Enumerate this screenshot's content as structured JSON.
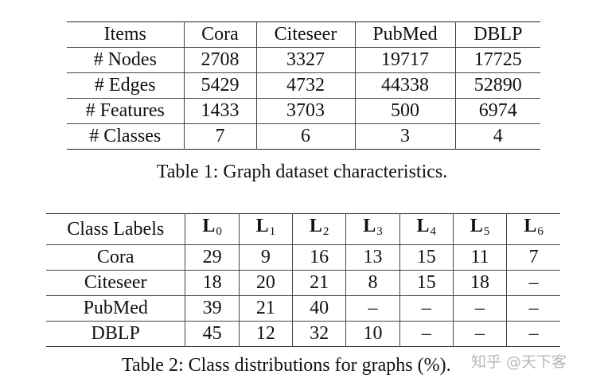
{
  "table1": {
    "header": [
      "Items",
      "Cora",
      "Citeseer",
      "PubMed",
      "DBLP"
    ],
    "rows": [
      [
        "# Nodes",
        "2708",
        "3327",
        "19717",
        "17725"
      ],
      [
        "# Edges",
        "5429",
        "4732",
        "44338",
        "52890"
      ],
      [
        "# Features",
        "1433",
        "3703",
        "500",
        "6974"
      ],
      [
        "# Classes",
        "7",
        "6",
        "3",
        "4"
      ]
    ],
    "caption": "Table 1: Graph dataset characteristics."
  },
  "table2": {
    "header_first": "Class Labels",
    "header_labels": [
      {
        "base": "L",
        "sub": "0"
      },
      {
        "base": "L",
        "sub": "1"
      },
      {
        "base": "L",
        "sub": "2"
      },
      {
        "base": "L",
        "sub": "3"
      },
      {
        "base": "L",
        "sub": "4"
      },
      {
        "base": "L",
        "sub": "5"
      },
      {
        "base": "L",
        "sub": "6"
      }
    ],
    "rows": [
      [
        "Cora",
        "29",
        "9",
        "16",
        "13",
        "15",
        "11",
        "7"
      ],
      [
        "Citeseer",
        "18",
        "20",
        "21",
        "8",
        "15",
        "18",
        "–"
      ],
      [
        "PubMed",
        "39",
        "21",
        "40",
        "–",
        "–",
        "–",
        "–"
      ],
      [
        "DBLP",
        "45",
        "12",
        "32",
        "10",
        "–",
        "–",
        "–"
      ]
    ],
    "caption": "Table 2: Class distributions for graphs (%)."
  },
  "watermark": "知乎 @天下客"
}
